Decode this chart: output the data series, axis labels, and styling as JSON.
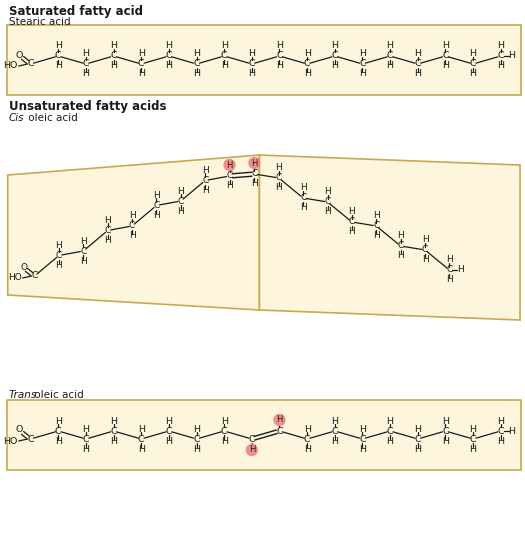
{
  "bg_color": "#FDF5DC",
  "border_color": "#C8A850",
  "text_color": "#1a1a1a",
  "title1": "Saturated fatty acid",
  "subtitle1": "Stearic acid",
  "title2": "Unsaturated fatty acids",
  "subtitle2_italic": "Cis",
  "subtitle2_rest": " oleic acid",
  "subtitle3_italic": "Trans",
  "subtitle3_rest": " oleic acid",
  "highlight_color": "#F08080"
}
